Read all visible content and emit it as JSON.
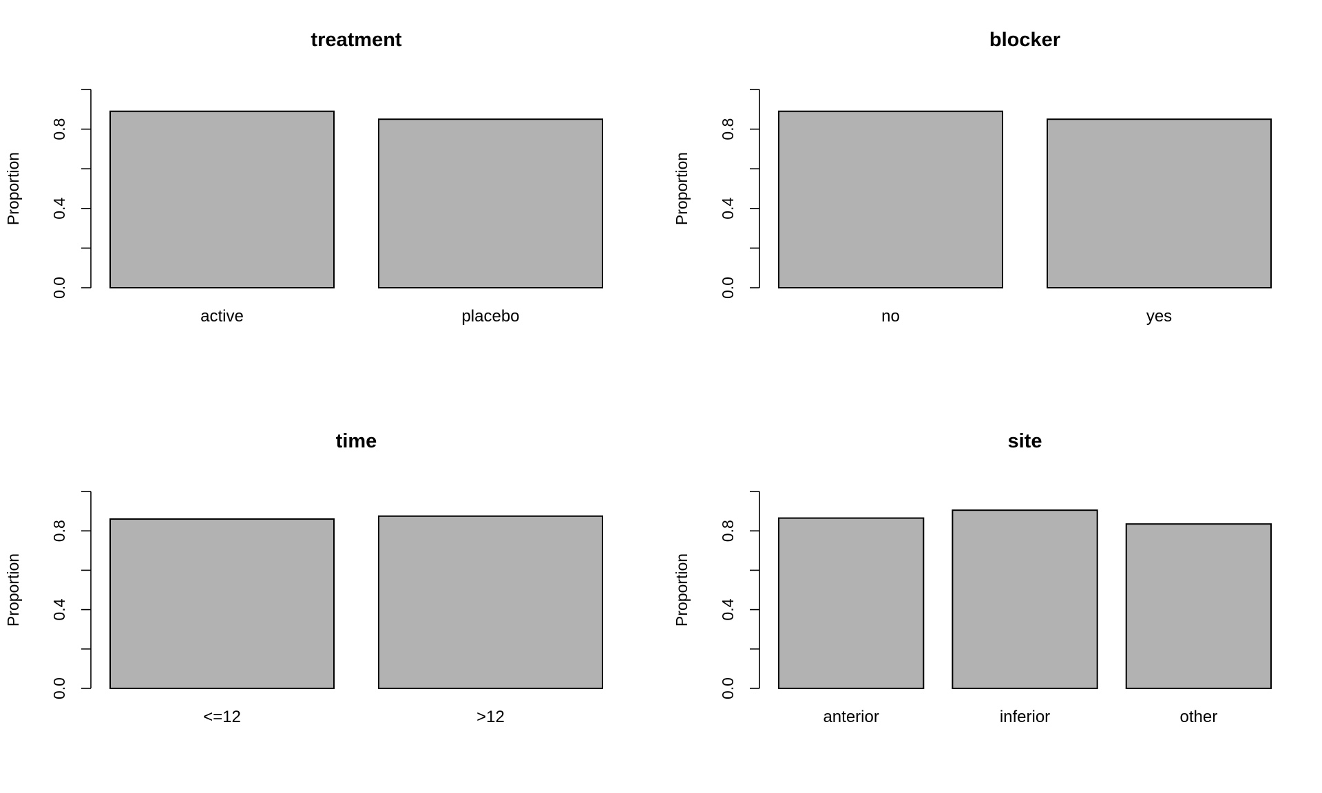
{
  "chart_data": [
    {
      "type": "bar",
      "title": "treatment",
      "ylabel": "Proportion",
      "ylim": [
        0,
        1
      ],
      "yticks": [
        "0.0",
        "0.4",
        "0.8"
      ],
      "categories": [
        "active",
        "placebo"
      ],
      "values": [
        0.89,
        0.85
      ],
      "bar_color": "#b2b2b2"
    },
    {
      "type": "bar",
      "title": "blocker",
      "ylabel": "Proportion",
      "ylim": [
        0,
        1
      ],
      "yticks": [
        "0.0",
        "0.4",
        "0.8"
      ],
      "categories": [
        "no",
        "yes"
      ],
      "values": [
        0.89,
        0.85
      ],
      "bar_color": "#b2b2b2"
    },
    {
      "type": "bar",
      "title": "time",
      "ylabel": "Proportion",
      "ylim": [
        0,
        1
      ],
      "yticks": [
        "0.0",
        "0.4",
        "0.8"
      ],
      "categories": [
        "<=12",
        ">12"
      ],
      "values": [
        0.86,
        0.875
      ],
      "bar_color": "#b2b2b2"
    },
    {
      "type": "bar",
      "title": "site",
      "ylabel": "Proportion",
      "ylim": [
        0,
        1
      ],
      "yticks": [
        "0.0",
        "0.4",
        "0.8"
      ],
      "categories": [
        "anterior",
        "inferior",
        "other"
      ],
      "values": [
        0.865,
        0.905,
        0.835
      ],
      "bar_color": "#b2b2b2"
    }
  ]
}
